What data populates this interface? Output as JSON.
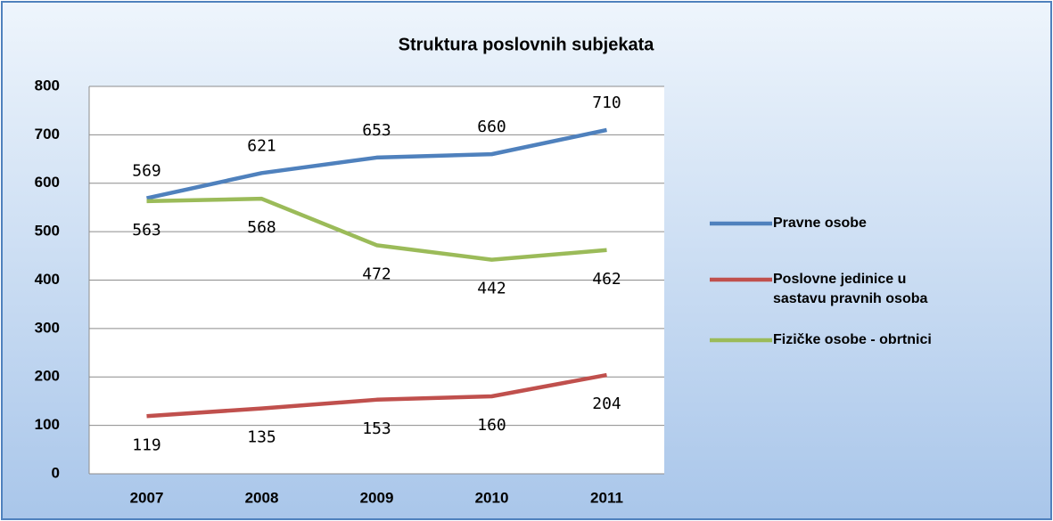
{
  "chart_data": {
    "type": "line",
    "title": "Struktura poslovnih subjekata",
    "categories": [
      "2007",
      "2008",
      "2009",
      "2010",
      "2011"
    ],
    "series": [
      {
        "name": "Pravne osobe",
        "color": "#4f81bd",
        "values": [
          569,
          621,
          653,
          660,
          710
        ]
      },
      {
        "name": "Poslovne jedinice u sastavu pravnih osoba",
        "color": "#c0504d",
        "values": [
          119,
          135,
          153,
          160,
          204
        ]
      },
      {
        "name": "Fizičke osobe - obrtnici",
        "color": "#9bbb59",
        "values": [
          563,
          568,
          472,
          442,
          462
        ]
      }
    ],
    "ylim": [
      0,
      800
    ],
    "yticks": [
      0,
      100,
      200,
      300,
      400,
      500,
      600,
      700,
      800
    ],
    "grid": true,
    "legend": "right"
  }
}
